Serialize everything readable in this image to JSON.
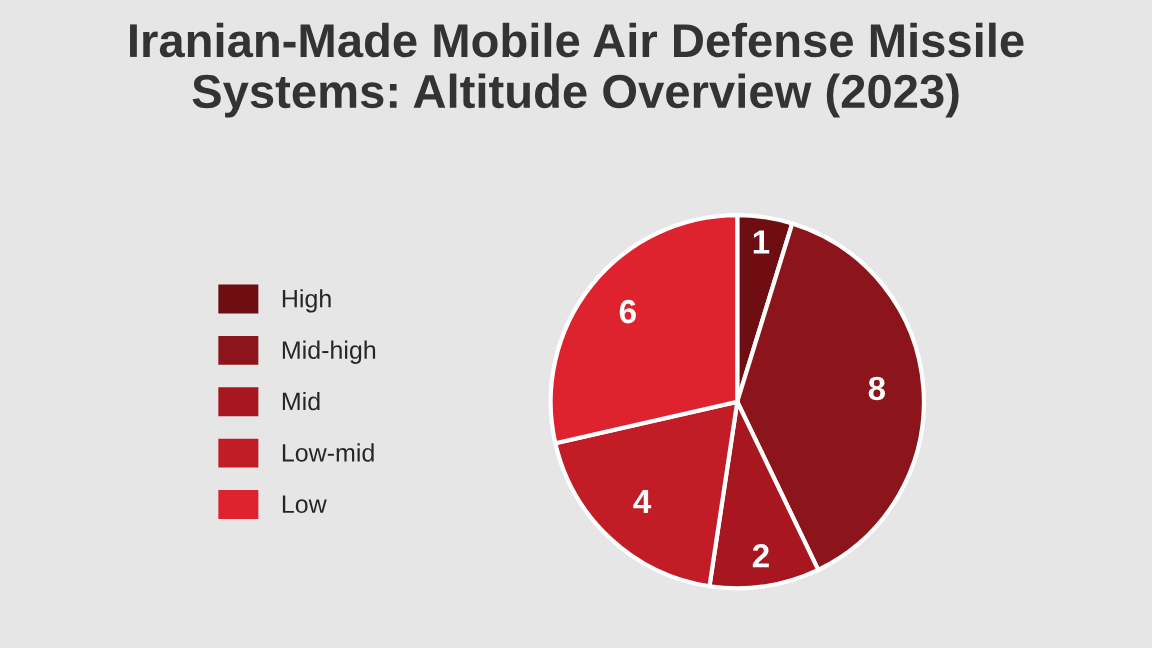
{
  "chart_data": {
    "type": "pie",
    "title": "Iranian-Made Mobile Air Defense Missile\nSystems: Altitude Overview (2023)",
    "categories": [
      "High",
      "Mid-high",
      "Mid",
      "Low-mid",
      "Low"
    ],
    "values": [
      1,
      8,
      2,
      4,
      6
    ],
    "colors": [
      "#6e0d12",
      "#8c141b",
      "#a8161f",
      "#c21c27",
      "#de232e"
    ],
    "data_labels": true,
    "legend": "left"
  }
}
